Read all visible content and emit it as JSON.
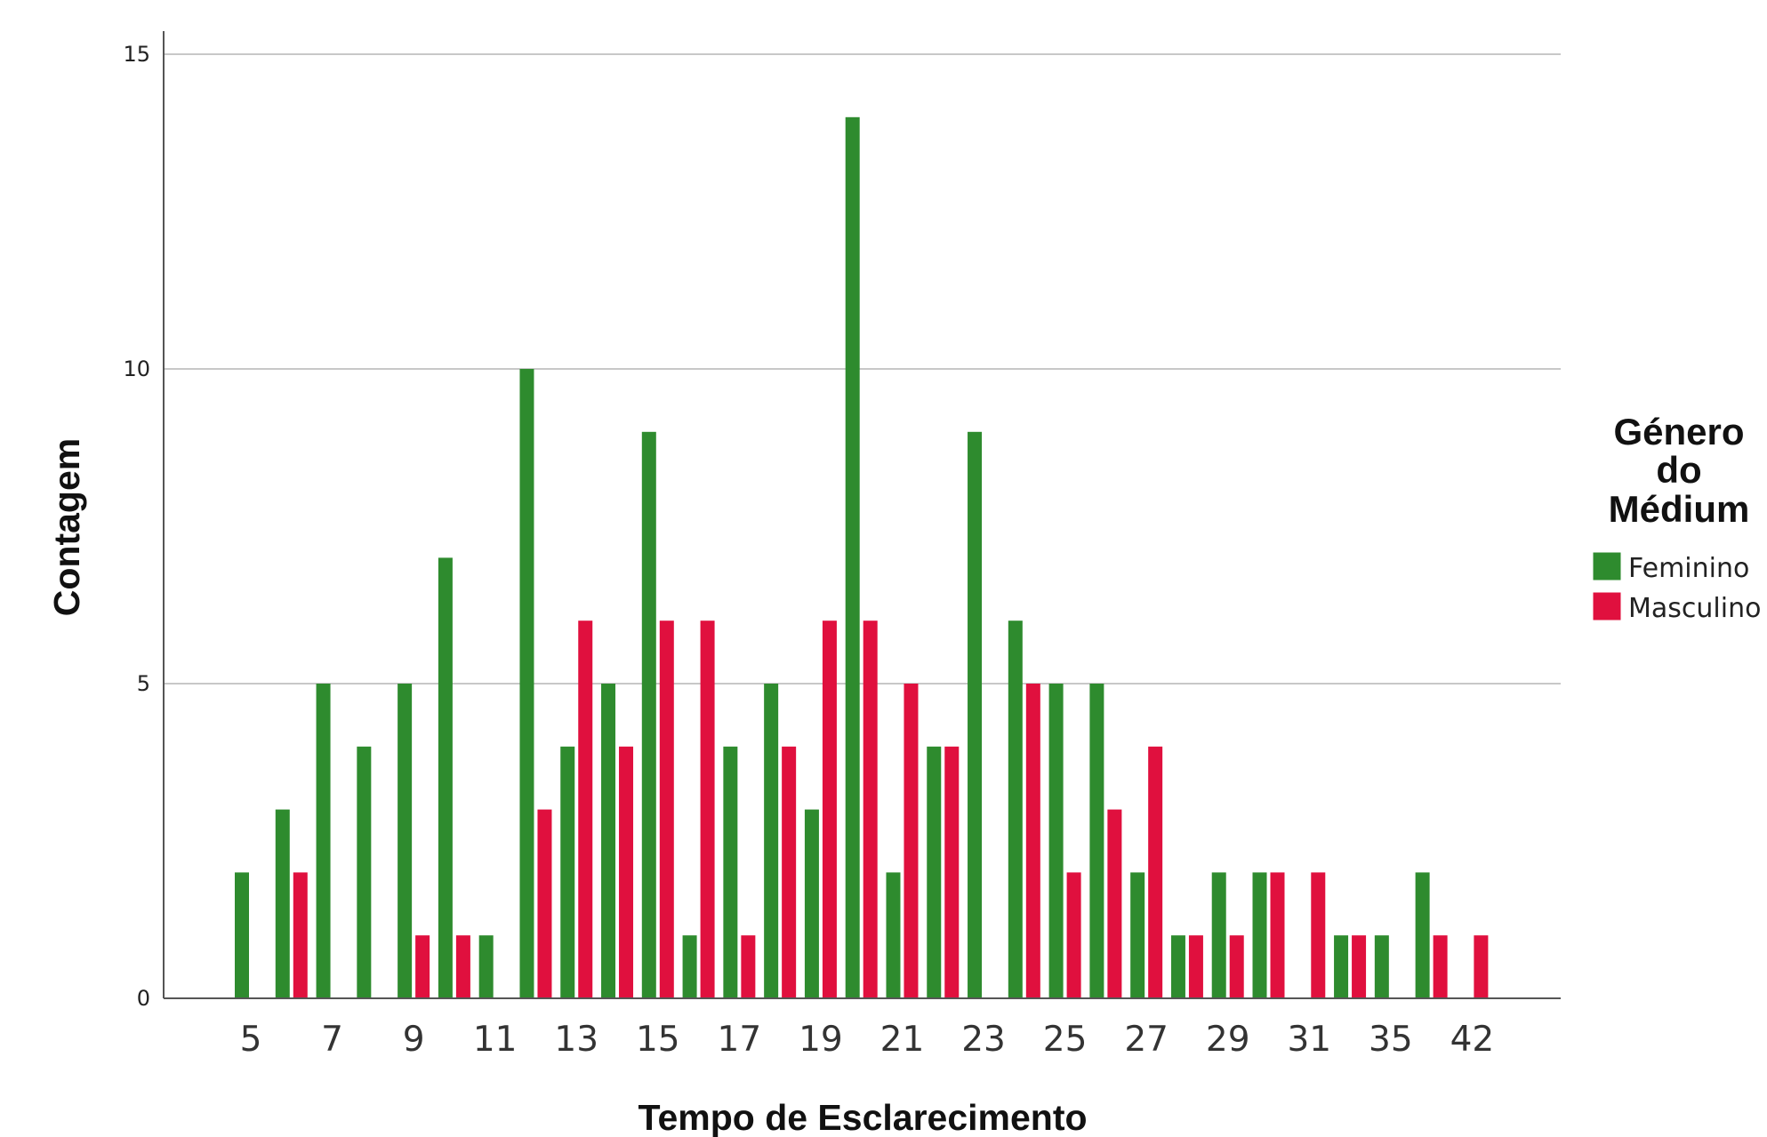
{
  "chart_data": {
    "type": "bar",
    "title": "",
    "xlabel": "Tempo de Esclarecimento",
    "ylabel": "Contagem",
    "ylim": [
      0,
      15
    ],
    "yticks": [
      0,
      5,
      10,
      15
    ],
    "grid": true,
    "legend_position": "right",
    "legend_title": [
      "Género",
      "do",
      "Médium"
    ],
    "categories": [
      "5",
      "6",
      "7",
      "8",
      "9",
      "10",
      "11",
      "12",
      "13",
      "14",
      "15",
      "16",
      "17",
      "18",
      "19",
      "20",
      "21",
      "22",
      "23",
      "24",
      "25",
      "26",
      "27",
      "28",
      "29",
      "30",
      "31",
      "33",
      "35",
      "40",
      "42"
    ],
    "category_labels": [
      "5",
      "",
      "7",
      "",
      "9",
      "",
      "11",
      "",
      "13",
      "",
      "15",
      "",
      "17",
      "",
      "19",
      "",
      "21",
      "",
      "23",
      "",
      "25",
      "",
      "27",
      "",
      "29",
      "",
      "31",
      "",
      "35",
      "",
      "42"
    ],
    "series": [
      {
        "name": "Feminino",
        "color": "#2e8b2e",
        "values": [
          2,
          3,
          5,
          4,
          5,
          7,
          1,
          10,
          4,
          5,
          9,
          1,
          4,
          5,
          3,
          14,
          2,
          4,
          9,
          6,
          5,
          5,
          2,
          1,
          2,
          2,
          0,
          1,
          1,
          2,
          0
        ]
      },
      {
        "name": "Masculino",
        "color": "#e0103e",
        "values": [
          0,
          2,
          0,
          0,
          1,
          1,
          0,
          3,
          6,
          4,
          6,
          6,
          1,
          4,
          6,
          6,
          5,
          4,
          0,
          5,
          2,
          3,
          4,
          1,
          1,
          2,
          2,
          1,
          0,
          1,
          1
        ]
      }
    ]
  }
}
